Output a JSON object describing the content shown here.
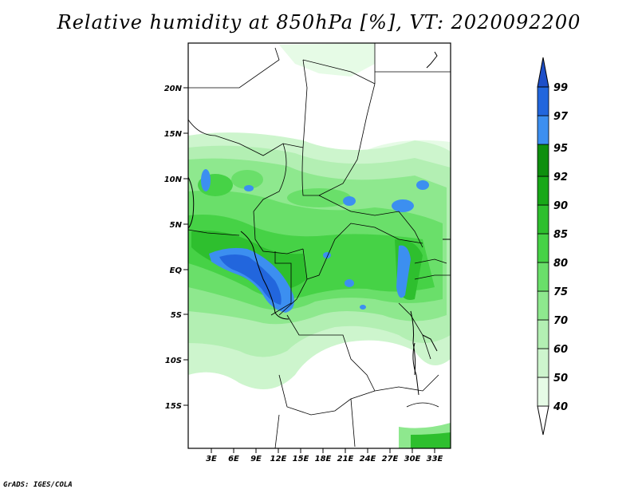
{
  "title": "Relative humidity at 850hPa [%], VT: 2020092200",
  "credit": "GrADS: IGES/COLA",
  "map": {
    "lat_labels": [
      "20N",
      "15N",
      "10N",
      "5N",
      "EQ",
      "5S",
      "10S",
      "15S"
    ],
    "lon_labels": [
      "3E",
      "6E",
      "9E",
      "12E",
      "15E",
      "18E",
      "21E",
      "24E",
      "27E",
      "30E",
      "33E"
    ]
  },
  "colorbar": {
    "levels": [
      "40",
      "50",
      "60",
      "70",
      "75",
      "80",
      "85",
      "90",
      "92",
      "95",
      "97",
      "99"
    ],
    "colors": [
      "#ffffff",
      "#e6fbe6",
      "#cdf5cd",
      "#b3efb3",
      "#8ee88e",
      "#6adf6a",
      "#46d246",
      "#2ebf2e",
      "#18a818",
      "#0e8f0e",
      "#3c8ff0",
      "#2266dd",
      "#1e4fc8"
    ]
  }
}
